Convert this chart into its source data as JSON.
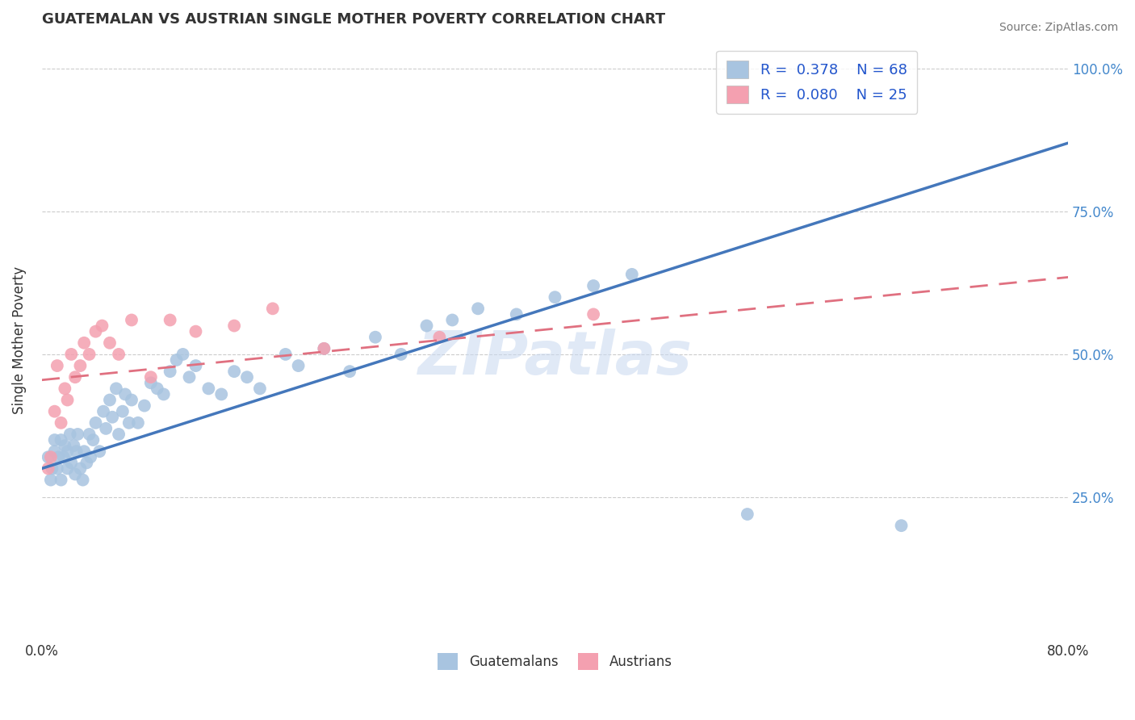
{
  "title": "GUATEMALAN VS AUSTRIAN SINGLE MOTHER POVERTY CORRELATION CHART",
  "ylabel": "Single Mother Poverty",
  "source_text": "Source: ZipAtlas.com",
  "watermark": "ZIPatlas",
  "xmin": 0.0,
  "xmax": 0.8,
  "ymin": 0.0,
  "ymax": 1.05,
  "guatemalan_color": "#a8c4e0",
  "austrian_color": "#f4a0b0",
  "guatemalan_line_color": "#4477bb",
  "austrian_line_color": "#e07080",
  "R_guatemalan": 0.378,
  "N_guatemalan": 68,
  "R_austrian": 0.08,
  "N_austrian": 25,
  "legend_labels": [
    "Guatemalans",
    "Austrians"
  ],
  "blue_line_x0": 0.0,
  "blue_line_y0": 0.3,
  "blue_line_x1": 0.8,
  "blue_line_y1": 0.87,
  "pink_line_x0": 0.0,
  "pink_line_y0": 0.455,
  "pink_line_x1": 0.8,
  "pink_line_y1": 0.635,
  "guatemalan_x": [
    0.005,
    0.007,
    0.008,
    0.01,
    0.01,
    0.012,
    0.013,
    0.015,
    0.015,
    0.017,
    0.018,
    0.02,
    0.02,
    0.022,
    0.023,
    0.025,
    0.026,
    0.027,
    0.028,
    0.03,
    0.032,
    0.033,
    0.035,
    0.037,
    0.038,
    0.04,
    0.042,
    0.045,
    0.048,
    0.05,
    0.053,
    0.055,
    0.058,
    0.06,
    0.063,
    0.065,
    0.068,
    0.07,
    0.075,
    0.08,
    0.085,
    0.09,
    0.095,
    0.1,
    0.105,
    0.11,
    0.115,
    0.12,
    0.13,
    0.14,
    0.15,
    0.16,
    0.17,
    0.19,
    0.2,
    0.22,
    0.24,
    0.26,
    0.28,
    0.3,
    0.32,
    0.34,
    0.37,
    0.4,
    0.43,
    0.46,
    0.55,
    0.67
  ],
  "guatemalan_y": [
    0.32,
    0.28,
    0.3,
    0.35,
    0.33,
    0.3,
    0.32,
    0.35,
    0.28,
    0.32,
    0.34,
    0.3,
    0.33,
    0.36,
    0.31,
    0.34,
    0.29,
    0.33,
    0.36,
    0.3,
    0.28,
    0.33,
    0.31,
    0.36,
    0.32,
    0.35,
    0.38,
    0.33,
    0.4,
    0.37,
    0.42,
    0.39,
    0.44,
    0.36,
    0.4,
    0.43,
    0.38,
    0.42,
    0.38,
    0.41,
    0.45,
    0.44,
    0.43,
    0.47,
    0.49,
    0.5,
    0.46,
    0.48,
    0.44,
    0.43,
    0.47,
    0.46,
    0.44,
    0.5,
    0.48,
    0.51,
    0.47,
    0.53,
    0.5,
    0.55,
    0.56,
    0.58,
    0.57,
    0.6,
    0.62,
    0.64,
    0.22,
    0.2
  ],
  "austrian_x": [
    0.005,
    0.007,
    0.01,
    0.012,
    0.015,
    0.018,
    0.02,
    0.023,
    0.026,
    0.03,
    0.033,
    0.037,
    0.042,
    0.047,
    0.053,
    0.06,
    0.07,
    0.085,
    0.1,
    0.12,
    0.15,
    0.18,
    0.22,
    0.31,
    0.43
  ],
  "austrian_y": [
    0.3,
    0.32,
    0.4,
    0.48,
    0.38,
    0.44,
    0.42,
    0.5,
    0.46,
    0.48,
    0.52,
    0.5,
    0.54,
    0.55,
    0.52,
    0.5,
    0.56,
    0.46,
    0.56,
    0.54,
    0.55,
    0.58,
    0.51,
    0.53,
    0.57
  ]
}
